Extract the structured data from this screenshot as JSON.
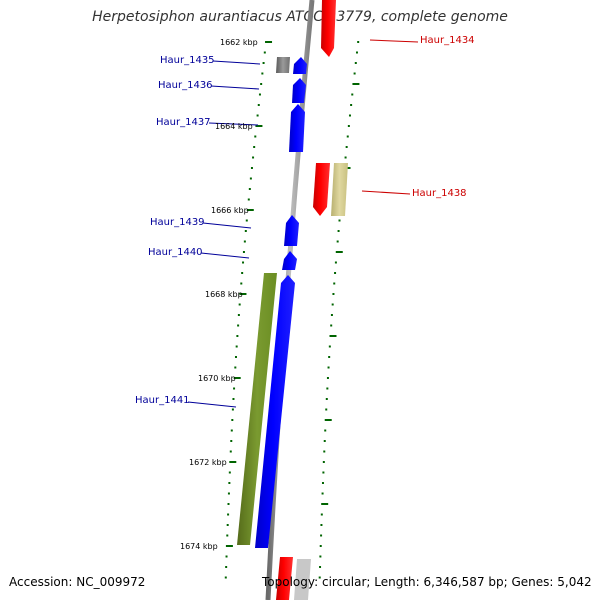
{
  "title": "Herpetosiphon aurantiacus ATCC 23779, complete genome",
  "accession": "Accession: NC_009972",
  "topology": "Topology: circular; Length: 6,346,587 bp; Genes: 5,042",
  "colors": {
    "forward_gene": "#0000ff",
    "reverse_gene": "#ff0000",
    "pseudo_gene": "#808080",
    "rrna_gene": "#6b8e23",
    "trna_gene": "#c8c080",
    "backbone": "#8a8a8a",
    "tick": "#006400",
    "forward_label": "#000099",
    "reverse_label": "#cc0000"
  },
  "ticks": [
    {
      "label": "1662 kbp"
    },
    {
      "label": "1664 kbp"
    },
    {
      "label": "1666 kbp"
    },
    {
      "label": "1668 kbp"
    },
    {
      "label": "1670 kbp"
    },
    {
      "label": "1672 kbp"
    },
    {
      "label": "1674 kbp"
    }
  ],
  "genes": [
    {
      "name": "Haur_1434",
      "strand": "reverse"
    },
    {
      "name": "Haur_1435",
      "strand": "forward"
    },
    {
      "name": "Haur_1436",
      "strand": "forward"
    },
    {
      "name": "Haur_1437",
      "strand": "forward"
    },
    {
      "name": "Haur_1438",
      "strand": "reverse"
    },
    {
      "name": "Haur_1439",
      "strand": "forward"
    },
    {
      "name": "Haur_1440",
      "strand": "forward"
    },
    {
      "name": "Haur_1441",
      "strand": "forward"
    }
  ]
}
